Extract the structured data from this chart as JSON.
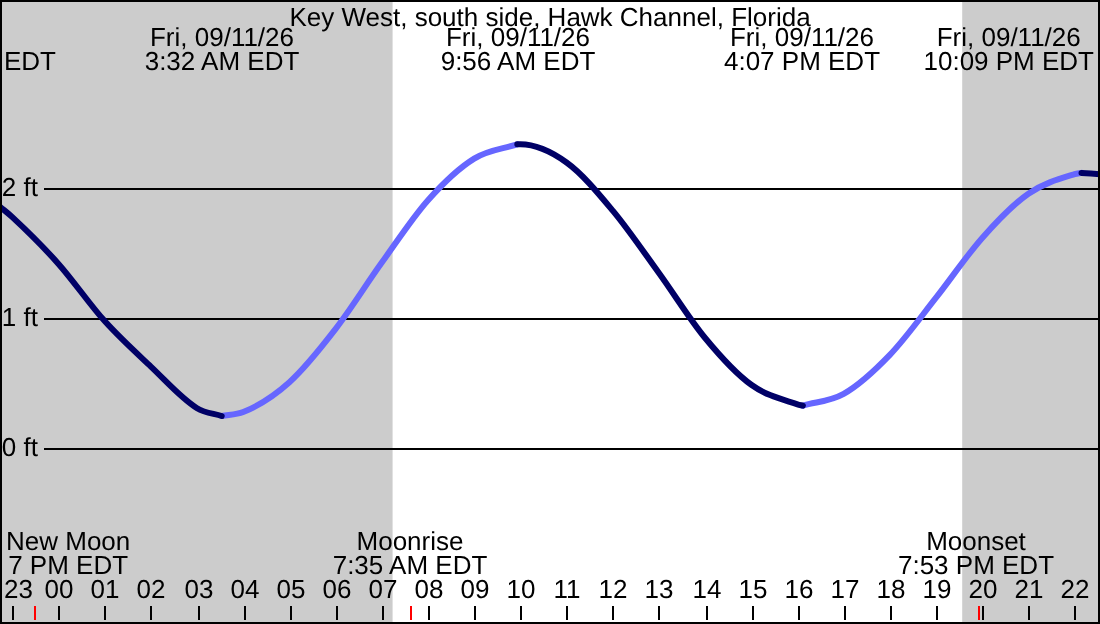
{
  "chart_data": {
    "type": "line",
    "title": "Key West, south side, Hawk Channel, Florida",
    "series": [
      {
        "color": "#000066",
        "x": [
          "--09-10T22:44",
          "--09-10T23:00",
          "--09-11T00:00",
          "--09-11T01:00",
          "--09-11T02:00",
          "--09-11T03:00",
          "--09-11T03:32",
          "--09-11T04:00",
          "--09-11T05:00",
          "--09-11T06:00",
          "--09-11T07:00",
          "--09-11T08:00",
          "--09-11T09:00",
          "--09-11T09:56",
          "--09-11T10:00",
          "--09-11T11:00",
          "--09-11T12:00",
          "--09-11T13:00",
          "--09-11T14:00",
          "--09-11T15:00",
          "--09-11T16:00",
          "--09-11T16:07",
          "--09-11T17:00",
          "--09-11T18:00",
          "--09-11T19:00",
          "--09-11T20:00",
          "--09-11T21:00",
          "--09-11T22:00",
          "--09-11T22:09",
          "--09-11T22:33"
        ],
        "values": [
          1.86,
          1.78,
          1.42,
          0.98,
          0.63,
          0.31,
          0.25,
          null,
          null,
          null,
          null,
          null,
          null,
          2.34,
          2.34,
          2.2,
          1.83,
          1.35,
          0.85,
          0.49,
          0.34,
          0.33,
          null,
          null,
          null,
          null,
          null,
          null,
          2.12,
          2.11
        ]
      },
      {
        "color": "#6666ff",
        "x": [
          "--09-11T03:32",
          "--09-11T04:00",
          "--09-11T05:00",
          "--09-11T06:00",
          "--09-11T07:00",
          "--09-11T08:00",
          "--09-11T09:00",
          "--09-11T09:56",
          "--09-11T10:00",
          "--09-11T16:07",
          "--09-11T17:00",
          "--09-11T18:00",
          "--09-11T19:00",
          "--09-11T20:00",
          "--09-11T21:00",
          "--09-11T22:00",
          "--09-11T22:09"
        ],
        "values": [
          0.25,
          0.28,
          0.51,
          0.92,
          1.43,
          1.91,
          2.23,
          2.34,
          null,
          0.33,
          0.42,
          0.72,
          1.16,
          1.62,
          1.96,
          2.11,
          2.12
        ]
      }
    ],
    "xlim": [
      "--09-10T22:44",
      "--09-11T22:33"
    ],
    "xticks": [
      {
        "value": "--09-10T23:00",
        "label": "23"
      },
      {
        "value": "--09-11T00:00",
        "label": "00"
      },
      {
        "value": "--09-11T01:00",
        "label": "01"
      },
      {
        "value": "--09-11T02:00",
        "label": "02"
      },
      {
        "value": "--09-11T03:00",
        "label": "03"
      },
      {
        "value": "--09-11T04:00",
        "label": "04"
      },
      {
        "value": "--09-11T05:00",
        "label": "05"
      },
      {
        "value": "--09-11T06:00",
        "label": "06"
      },
      {
        "value": "--09-11T07:00",
        "label": "07"
      },
      {
        "value": "--09-11T08:00",
        "label": "08"
      },
      {
        "value": "--09-11T09:00",
        "label": "09"
      },
      {
        "value": "--09-11T10:00",
        "label": "10"
      },
      {
        "value": "--09-11T11:00",
        "label": "11"
      },
      {
        "value": "--09-11T12:00",
        "label": "12"
      },
      {
        "value": "--09-11T13:00",
        "label": "13"
      },
      {
        "value": "--09-11T14:00",
        "label": "14"
      },
      {
        "value": "--09-11T15:00",
        "label": "15"
      },
      {
        "value": "--09-11T16:00",
        "label": "16"
      },
      {
        "value": "--09-11T17:00",
        "label": "17"
      },
      {
        "value": "--09-11T18:00",
        "label": "18"
      },
      {
        "value": "--09-11T19:00",
        "label": "19"
      },
      {
        "value": "--09-11T20:00",
        "label": "20"
      },
      {
        "value": "--09-11T21:00",
        "label": "21"
      },
      {
        "value": "--09-11T22:00",
        "label": "22"
      }
    ],
    "ylim": [
      -1.35,
      3.45
    ],
    "yticks": [
      {
        "value": 0,
        "label": "0 ft"
      },
      {
        "value": 1,
        "label": "1 ft"
      },
      {
        "value": 2,
        "label": "2 ft"
      }
    ],
    "grid": "y",
    "bands": [
      {
        "axis": "x",
        "from": "--09-10T22:44",
        "to": "--09-11T07:14",
        "color": "#cccccc"
      },
      {
        "axis": "x",
        "from": "--09-11T19:34",
        "to": "--09-11T22:33",
        "color": "#cccccc"
      }
    ],
    "annotations": [
      "EDT",
      "Fri, 09/11/26\n3:32 AM EDT",
      "Fri, 09/11/26\n9:56 AM EDT",
      "Fri, 09/11/26\n4:07 PM EDT",
      "Fri, 09/11/26\n10:09 PM EDT",
      "New Moon\n7 PM EDT",
      "Moonrise\n7:35 AM EDT",
      "Moonset\n7:53 PM EDT"
    ]
  }
}
